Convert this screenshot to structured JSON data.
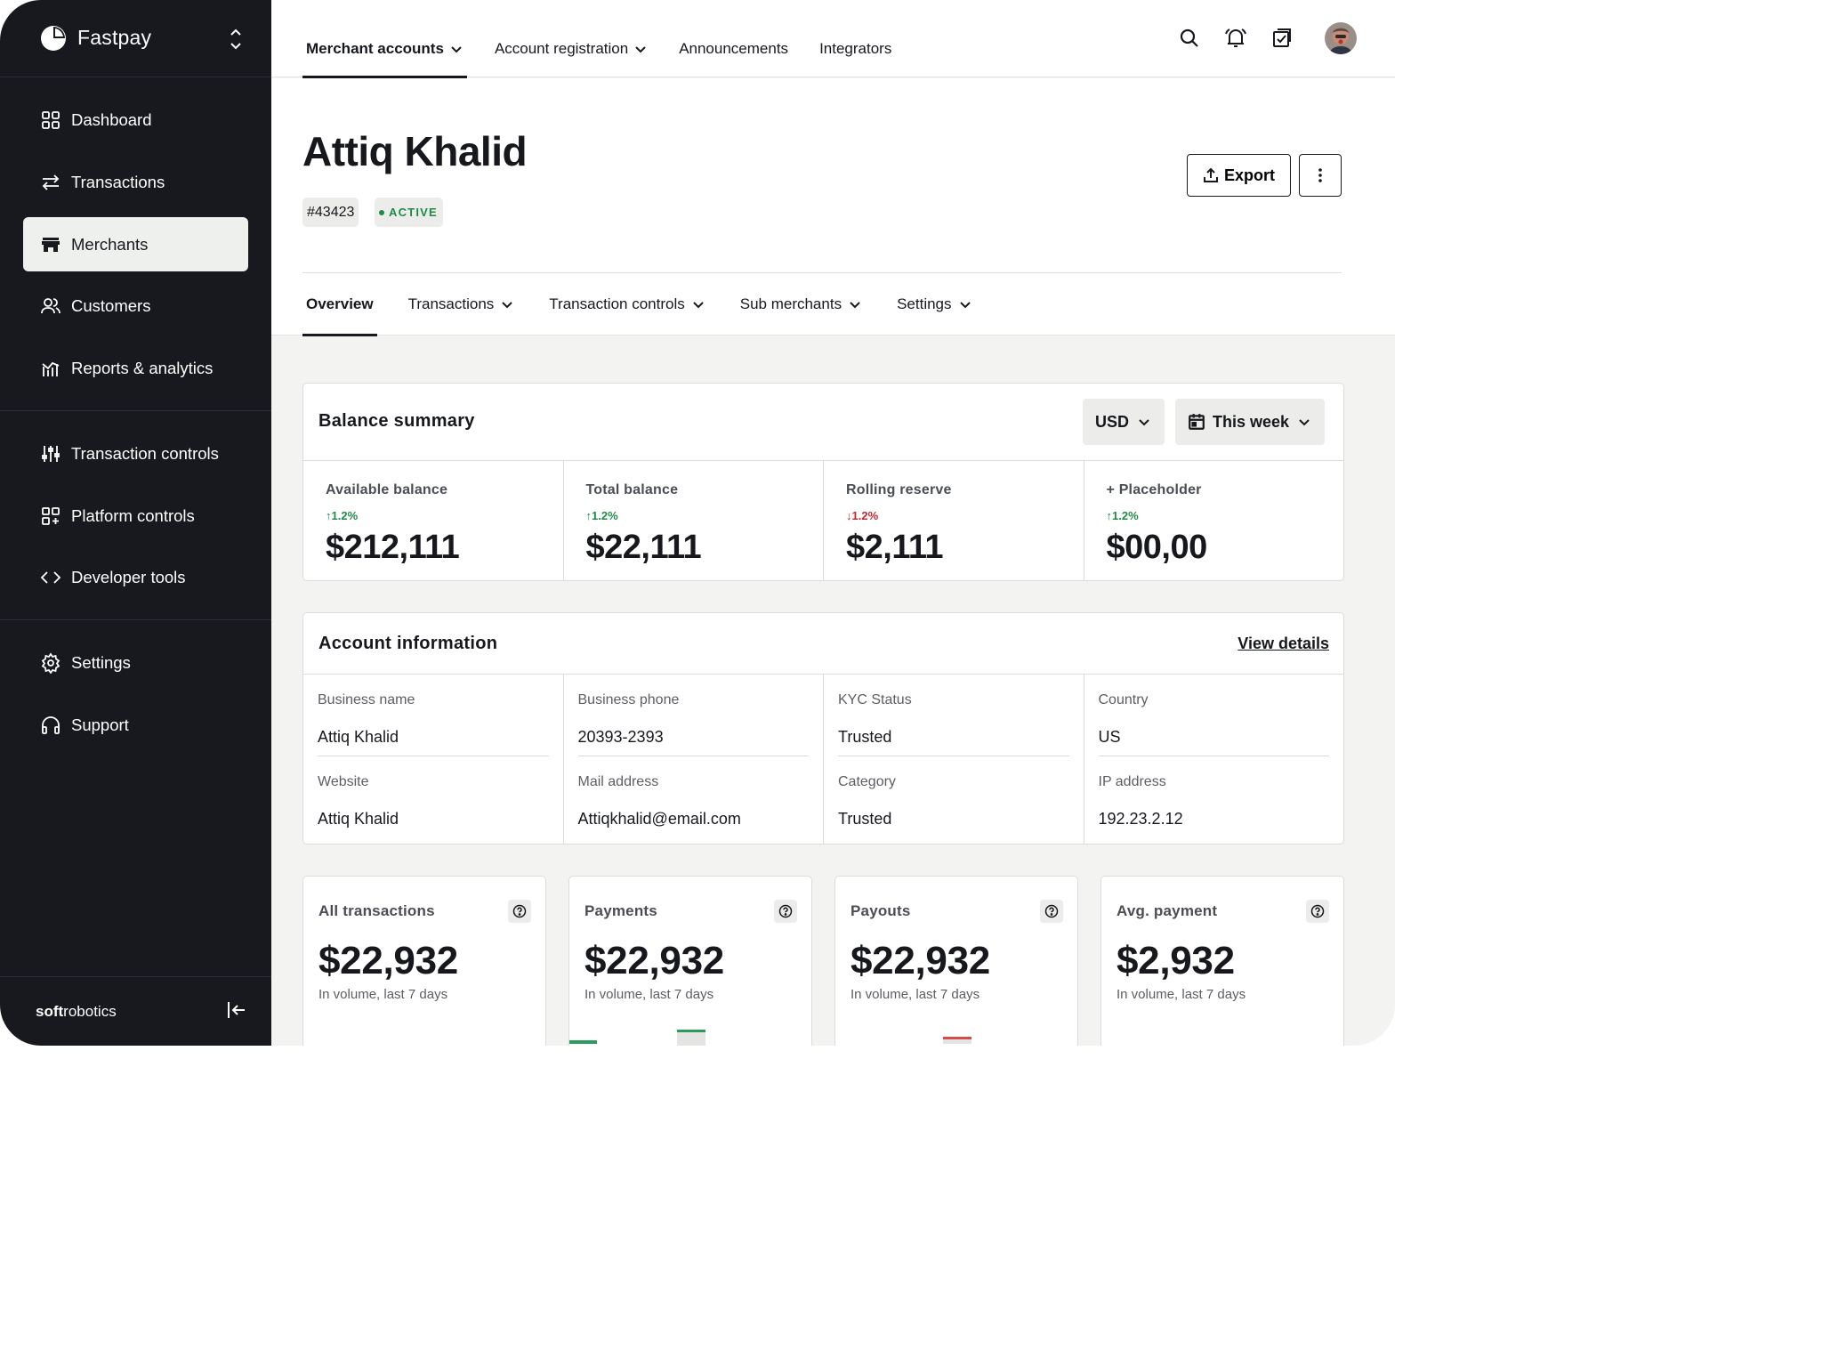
{
  "app": {
    "name": "Fastpay",
    "company_prefix": "soft",
    "company_suffix": "robotics"
  },
  "sidebar": {
    "items": [
      {
        "label": "Dashboard",
        "icon": "grid-icon"
      },
      {
        "label": "Transactions",
        "icon": "arrows-swap-icon"
      },
      {
        "label": "Merchants",
        "icon": "store-icon",
        "active": true
      },
      {
        "label": "Customers",
        "icon": "users-icon"
      },
      {
        "label": "Reports & analytics",
        "icon": "chart-icon"
      },
      {
        "label": "Transaction controls",
        "icon": "sliders-icon"
      },
      {
        "label": "Platform controls",
        "icon": "grid-plus-icon"
      },
      {
        "label": "Developer tools",
        "icon": "code-icon"
      },
      {
        "label": "Settings",
        "icon": "gear-icon"
      },
      {
        "label": "Support",
        "icon": "headphones-icon"
      }
    ]
  },
  "topnav": {
    "tabs": [
      {
        "label": "Merchant accounts",
        "active": true,
        "dropdown": true
      },
      {
        "label": "Account registration",
        "dropdown": true
      },
      {
        "label": "Announcements"
      },
      {
        "label": "Integrators"
      }
    ]
  },
  "merchant": {
    "name": "Attiq Khalid",
    "id": "#43423",
    "status": "ACTIVE"
  },
  "actions": {
    "export_label": "Export"
  },
  "subnav": {
    "tabs": [
      {
        "label": "Overview",
        "active": true
      },
      {
        "label": "Transactions",
        "dropdown": true
      },
      {
        "label": "Transaction controls",
        "dropdown": true
      },
      {
        "label": "Sub merchants",
        "dropdown": true
      },
      {
        "label": "Settings",
        "dropdown": true
      }
    ]
  },
  "balance_summary": {
    "title": "Balance summary",
    "currency": "USD",
    "period": "This week",
    "items": [
      {
        "label": "Available balance",
        "change": "1.2%",
        "direction": "up",
        "value": "$212,111"
      },
      {
        "label": "Total balance",
        "change": "1.2%",
        "direction": "up",
        "value": "$22,111"
      },
      {
        "label": "Rolling reserve",
        "change": "1.2%",
        "direction": "down",
        "value": "$2,111"
      },
      {
        "label": "+ Placeholder",
        "change": "1.2%",
        "direction": "up",
        "value": "$00,00"
      }
    ]
  },
  "account_info": {
    "title": "Account information",
    "view_details": "View details",
    "fields": [
      {
        "label": "Business name",
        "value": "Attiq Khalid"
      },
      {
        "label": "Business phone",
        "value": "20393-2393"
      },
      {
        "label": "KYC Status",
        "value": "Trusted"
      },
      {
        "label": "Country",
        "value": "US"
      },
      {
        "label": "Website",
        "value": "Attiq Khalid"
      },
      {
        "label": "Mail address",
        "value": "Attiqkhalid@email.com"
      },
      {
        "label": "Category",
        "value": "Trusted"
      },
      {
        "label": "IP address",
        "value": "192.23.2.12"
      }
    ]
  },
  "stats": [
    {
      "title": "All transactions",
      "value": "$22,932",
      "sub": "In volume, last 7 days"
    },
    {
      "title": "Payments",
      "value": "$22,932",
      "sub": "In volume, last 7 days"
    },
    {
      "title": "Payouts",
      "value": "$22,932",
      "sub": "In volume, last 7 days"
    },
    {
      "title": "Avg. payment",
      "value": "$2,932",
      "sub": "In volume, last 7 days"
    }
  ],
  "colors": {
    "sidebar_bg": "#17191e",
    "positive": "#1f8a47",
    "negative": "#c6262e",
    "text": "#16181d"
  }
}
